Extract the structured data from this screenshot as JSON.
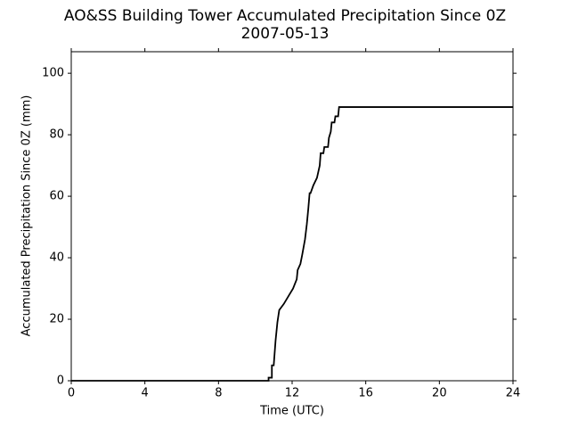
{
  "chart_data": {
    "type": "line",
    "title": "AO&SS Building Tower Accumulated Precipitation Since 0Z",
    "subtitle": "2007-05-13",
    "x_label": "Time (UTC)",
    "y_label": "Accumulated Precipitation Since 0Z (mm)",
    "xlim": [
      0,
      24
    ],
    "xticks": [
      0,
      4,
      8,
      12,
      16,
      20,
      24
    ],
    "ylim": [
      0,
      107
    ],
    "yticks": [
      0,
      20,
      40,
      60,
      80,
      100
    ],
    "grid": false,
    "series": [
      {
        "color": "#000000",
        "x": [
          0,
          10.72,
          10.72,
          10.9,
          10.9,
          11.0,
          11.1,
          11.2,
          11.3,
          11.3,
          11.55,
          11.55,
          11.85,
          11.85,
          12.05,
          12.05,
          12.25,
          12.3,
          12.45,
          12.55,
          12.7,
          12.8,
          12.88,
          12.95,
          13.0,
          13.15,
          13.15,
          13.35,
          13.35,
          13.5,
          13.55,
          13.7,
          13.75,
          13.95,
          14.0,
          14.1,
          14.15,
          14.3,
          14.35,
          14.5,
          14.55,
          24
        ],
        "values": [
          0,
          0,
          1,
          1,
          5,
          5,
          13,
          19,
          23,
          23,
          25,
          25,
          28,
          28,
          30,
          30,
          33,
          36,
          38,
          41,
          46,
          51,
          56,
          61,
          61,
          63.5,
          63.5,
          66,
          66,
          70,
          74,
          74,
          76,
          76,
          79,
          81,
          84,
          84,
          86,
          86,
          89,
          89
        ]
      }
    ]
  }
}
